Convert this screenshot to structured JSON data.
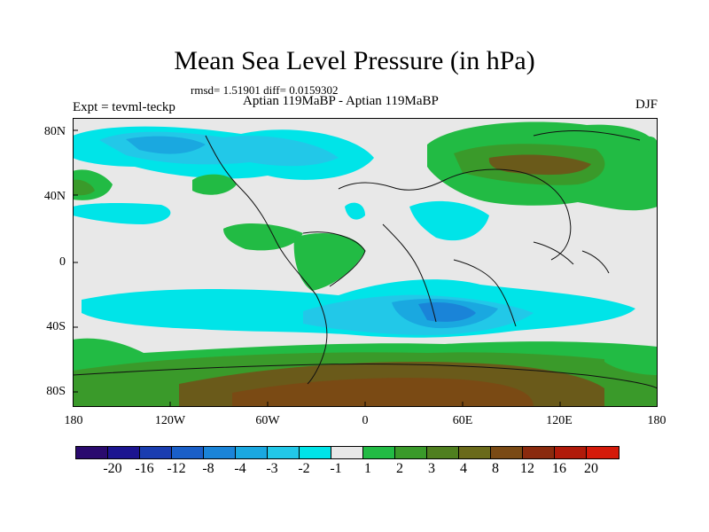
{
  "title": "Mean Sea Level Pressure (in hPa)",
  "stats": "rmsd= 1.51901 diff= 0.0159302",
  "experiment": "Expt = tevml-teckp",
  "comparison": "Aptian   119MaBP - Aptian   119MaBP",
  "season": "DJF",
  "y_ticks": [
    "80N",
    "40N",
    "0",
    "40S",
    "80S"
  ],
  "x_ticks": [
    "180",
    "120W",
    "60W",
    "0",
    "60E",
    "120E",
    "180"
  ],
  "legend": {
    "colors": [
      "#2a0a6e",
      "#1c1490",
      "#1a3db0",
      "#1a5fc8",
      "#1a84d8",
      "#1aa8e0",
      "#22c8e8",
      "#00e4e8",
      "#e8e8e8",
      "#22bb44",
      "#3a9a2a",
      "#4f7f1f",
      "#6a6a1a",
      "#7a4a14",
      "#8a2a0e",
      "#b01a0a",
      "#d41a0a"
    ],
    "labels": [
      "-20",
      "-16",
      "-12",
      "-8",
      "-4",
      "-3",
      "-2",
      "-1",
      "1",
      "2",
      "3",
      "4",
      "8",
      "12",
      "16",
      "20"
    ]
  },
  "fill_colors": {
    "neutral": "#e8e8e8",
    "pos_light": "#22bb44",
    "pos_mid": "#3a9a2a",
    "pos_dark": "#6a5a1a",
    "pos_brown": "#7a4a14",
    "neg_light": "#00e4e8",
    "neg_mid": "#22c8e8",
    "neg_dark": "#1aa8e0",
    "neg_deep": "#1a84d8"
  }
}
